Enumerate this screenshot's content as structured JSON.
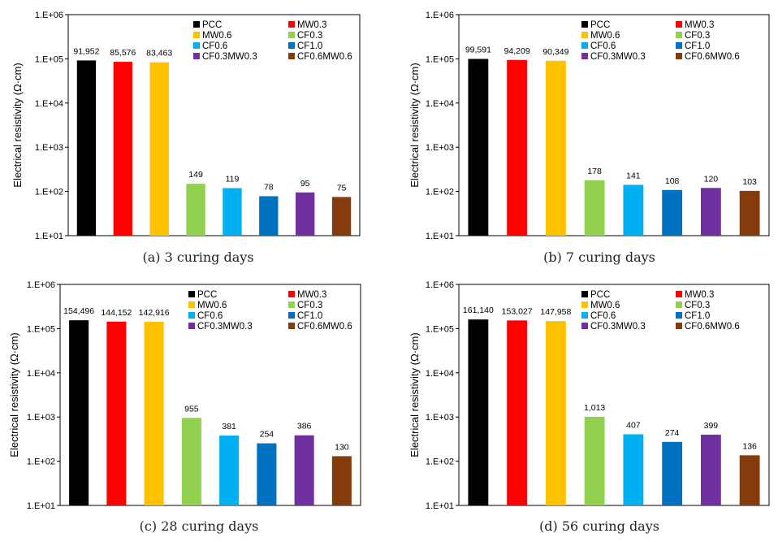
{
  "series_colors": {
    "PCC": "#000000",
    "MW0.3": "#ff0000",
    "MW0.6": "#ffc000",
    "CF0.3": "#92d050",
    "CF0.6": "#00b0f0",
    "CF1.0": "#0070c0",
    "CF0.3MW0.3": "#7030a0",
    "CF0.6MW0.6": "#843c0c"
  },
  "chart_data": [
    {
      "type": "bar",
      "caption": "(a) 3 curing days",
      "ylabel": "Electrical resistivity (Ω·cm)",
      "yscale": "log",
      "ylim": [
        10,
        1000000
      ],
      "yticks": [
        "1.E+01",
        "1.E+02",
        "1.E+03",
        "1.E+04",
        "1.E+05",
        "1.E+06"
      ],
      "legend": "top-right",
      "categories": [
        "PCC",
        "MW0.3",
        "MW0.6",
        "CF0.3",
        "CF0.6",
        "CF1.0",
        "CF0.3MW0.3",
        "CF0.6MW0.6"
      ],
      "values": [
        91952,
        85576,
        83463,
        149,
        119,
        78,
        95,
        75
      ],
      "data_labels": [
        "91,952",
        "85,576",
        "83,463",
        "149",
        "119",
        "78",
        "95",
        "75"
      ]
    },
    {
      "type": "bar",
      "caption": "(b) 7 curing days",
      "ylabel": "Electrical resistivity (Ω·cm)",
      "yscale": "log",
      "ylim": [
        10,
        1000000
      ],
      "yticks": [
        "1.E+01",
        "1.E+02",
        "1.E+03",
        "1.E+04",
        "1.E+05",
        "1.E+06"
      ],
      "legend": "top-right",
      "categories": [
        "PCC",
        "MW0.3",
        "MW0.6",
        "CF0.3",
        "CF0.6",
        "CF1.0",
        "CF0.3MW0.3",
        "CF0.6MW0.6"
      ],
      "values": [
        99591,
        94209,
        90349,
        178,
        141,
        108,
        120,
        103
      ],
      "data_labels": [
        "99,591",
        "94,209",
        "90,349",
        "178",
        "141",
        "108",
        "120",
        "103"
      ]
    },
    {
      "type": "bar",
      "caption": "(c) 28 curing days",
      "ylabel": "Electrical resistivity (Ω·cm)",
      "yscale": "log",
      "ylim": [
        10,
        1000000
      ],
      "yticks": [
        "1.E+01",
        "1.E+02",
        "1.E+03",
        "1.E+04",
        "1.E+05",
        "1.E+06"
      ],
      "legend": "top-right",
      "categories": [
        "PCC",
        "MW0.3",
        "MW0.6",
        "CF0.3",
        "CF0.6",
        "CF1.0",
        "CF0.3MW0.3",
        "CF0.6MW0.6"
      ],
      "values": [
        154496,
        144152,
        142916,
        955,
        381,
        254,
        386,
        130
      ],
      "data_labels": [
        "154,496",
        "144,152",
        "142,916",
        "955",
        "381",
        "254",
        "386",
        "130"
      ]
    },
    {
      "type": "bar",
      "caption": "(d) 56 curing days",
      "ylabel": "Electrical resistivity (Ω·cm)",
      "yscale": "log",
      "ylim": [
        10,
        1000000
      ],
      "yticks": [
        "1.E+01",
        "1.E+02",
        "1.E+03",
        "1.E+04",
        "1.E+05",
        "1.E+06"
      ],
      "legend": "top-right",
      "categories": [
        "PCC",
        "MW0.3",
        "MW0.6",
        "CF0.3",
        "CF0.6",
        "CF1.0",
        "CF0.3MW0.3",
        "CF0.6MW0.6"
      ],
      "values": [
        161140,
        153027,
        147958,
        1013,
        407,
        274,
        399,
        136
      ],
      "data_labels": [
        "161,140",
        "153,027",
        "147,958",
        "1,013",
        "407",
        "274",
        "399",
        "136"
      ]
    }
  ]
}
